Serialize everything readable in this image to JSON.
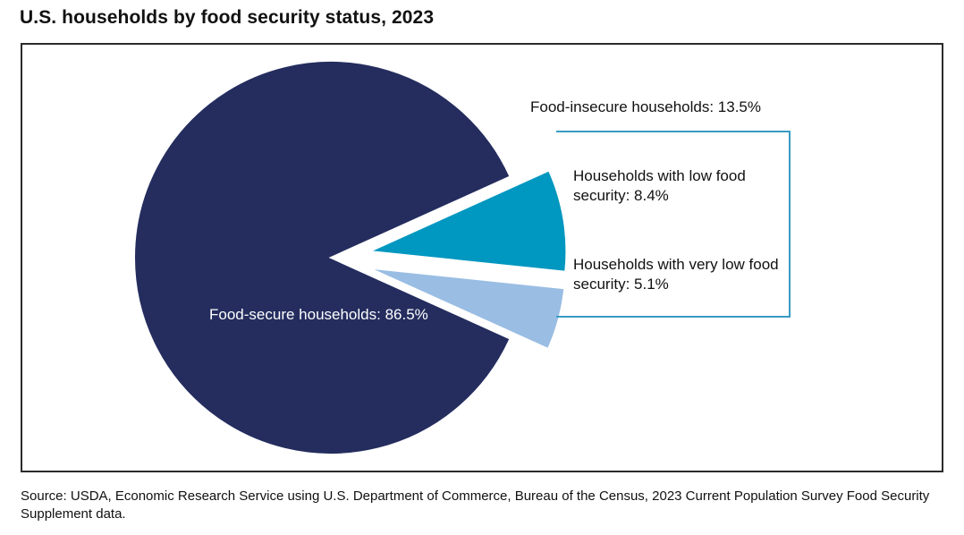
{
  "chart_data": {
    "type": "pie",
    "title": "U.S. households by food security status, 2023",
    "slices": [
      {
        "name": "Food-secure households",
        "value": 86.5,
        "label": "Food-secure households: 86.5%",
        "color": "#242d5e"
      },
      {
        "name": "Households with low food security",
        "value": 8.4,
        "label": "Households with low food security: 8.4%",
        "color": "#0097c0"
      },
      {
        "name": "Households with very low food security",
        "value": 5.1,
        "label": "Households with very low food security: 5.1%",
        "color": "#9abde3"
      }
    ],
    "group_label": "Food-insecure households: 13.5%",
    "source": "Source: USDA, Economic Research Service using U.S. Department of Commerce, Bureau of the Census, 2023 Current Population Survey Food Security Supplement data."
  }
}
